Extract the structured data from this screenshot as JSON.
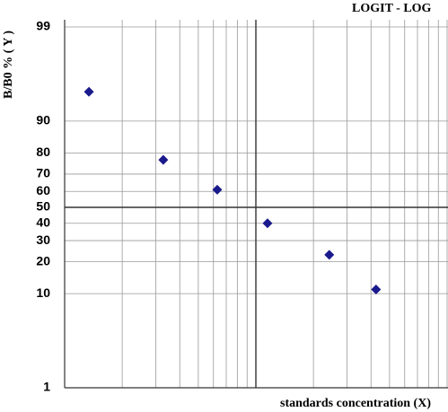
{
  "chart_data": {
    "type": "scatter",
    "title": "LOGIT - LOG",
    "y_label": "B/B0 % ( Y )",
    "x_label": "standards concentration (X)",
    "x": [
      1.34,
      3.28,
      6.28,
      11.5,
      24.2,
      42.5
    ],
    "values": [
      95,
      77,
      61,
      40,
      23,
      11
    ],
    "color": "#1a1a8c",
    "x_scale": "log",
    "y_scale": "logit",
    "xlim": [
      1,
      100
    ],
    "ylim": [
      1,
      99
    ],
    "yticks": [
      99,
      90,
      80,
      70,
      60,
      50,
      40,
      30,
      20,
      10,
      1
    ],
    "x_grid_lines": [
      1,
      2,
      3,
      4,
      5,
      6,
      7,
      8,
      9,
      10,
      20,
      30,
      40,
      50,
      60,
      70,
      80,
      90,
      100
    ],
    "reference_lines": {
      "x": 10,
      "y": 50
    },
    "grid": true
  }
}
